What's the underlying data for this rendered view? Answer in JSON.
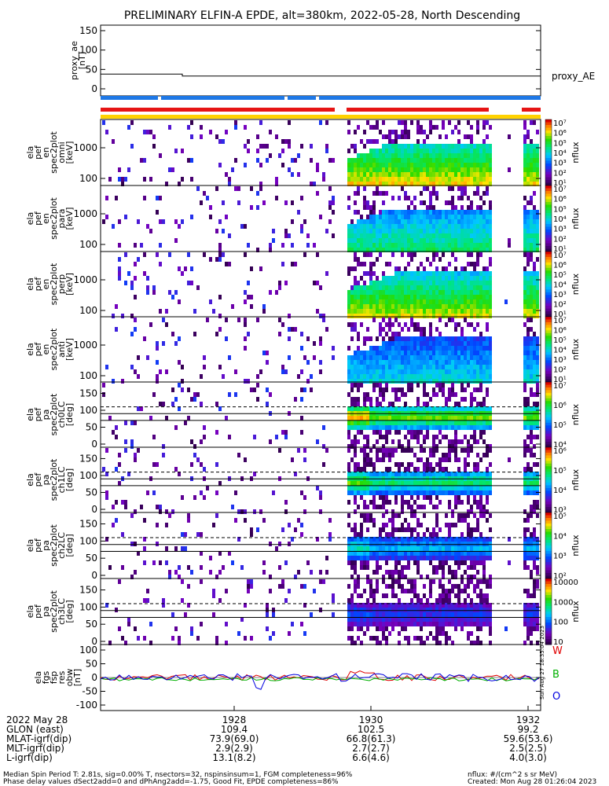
{
  "title": "PRELIMINARY ELFIN-A EPDE, alt=380km, 2022-05-28, North Descending",
  "proxy_panel": {
    "ylabel_lines": [
      "proxy_ae",
      "[nT]"
    ],
    "yticks": [
      "150",
      "100",
      "50",
      "0"
    ],
    "legend": "proxy_AE"
  },
  "spec_panels": [
    {
      "ylabel_lines": [
        "ela",
        "pef",
        "en",
        "spec2plot",
        "omni",
        "[keV]"
      ],
      "yticks": [
        "1000",
        "100"
      ],
      "cbar_ticks": [
        "10⁷",
        "10⁶",
        "10⁵",
        "10⁴",
        "10³",
        "10²",
        "10¹"
      ],
      "cbar_label": "nflux"
    },
    {
      "ylabel_lines": [
        "ela",
        "pef",
        "en",
        "spec2plot",
        "para",
        "[keV]"
      ],
      "yticks": [
        "1000",
        "100"
      ],
      "cbar_ticks": [
        "10⁷",
        "10⁶",
        "10⁵",
        "10⁴",
        "10³",
        "10²",
        "10¹"
      ],
      "cbar_label": "nflux"
    },
    {
      "ylabel_lines": [
        "ela",
        "pef",
        "en",
        "spec2plot",
        "perp",
        "[keV]"
      ],
      "yticks": [
        "1000",
        "100"
      ],
      "cbar_ticks": [
        "10⁷",
        "10⁶",
        "10⁵",
        "10⁴",
        "10³",
        "10²",
        "10¹"
      ],
      "cbar_label": "nflux"
    },
    {
      "ylabel_lines": [
        "ela",
        "pef",
        "en",
        "spec2plot",
        "anti",
        "[keV]"
      ],
      "yticks": [
        "1000",
        "100"
      ],
      "cbar_ticks": [
        "10⁷",
        "10⁶",
        "10⁵",
        "10⁴",
        "10³",
        "10²",
        "10¹"
      ],
      "cbar_label": "nflux"
    },
    {
      "ylabel_lines": [
        "ela",
        "pef",
        "pa",
        "spec2plot",
        "ch0LC",
        "[deg]"
      ],
      "yticks": [
        "150",
        "100",
        "50",
        "0"
      ],
      "cbar_ticks": [
        "10⁷",
        "10⁶",
        "10⁵",
        "10⁴"
      ],
      "cbar_label": "nflux"
    },
    {
      "ylabel_lines": [
        "ela",
        "pef",
        "pa",
        "spec2plot",
        "ch1LC",
        "[deg]"
      ],
      "yticks": [
        "150",
        "100",
        "50",
        "0"
      ],
      "cbar_ticks": [
        "10⁶",
        "10⁵",
        "10⁴",
        "10³"
      ],
      "cbar_label": "nflux"
    },
    {
      "ylabel_lines": [
        "ela",
        "pef",
        "pa",
        "spec2plot",
        "ch2LC",
        "[deg]"
      ],
      "yticks": [
        "150",
        "100",
        "50",
        "0"
      ],
      "cbar_ticks": [
        "10⁵",
        "10⁴",
        "10³",
        "10²"
      ],
      "cbar_label": "nflux"
    },
    {
      "ylabel_lines": [
        "ela",
        "pef",
        "pa",
        "spec2plot",
        "ch3LC",
        "[deg]"
      ],
      "yticks": [
        "150",
        "100",
        "50",
        "0"
      ],
      "cbar_ticks": [
        "10000",
        "1000",
        "100",
        "10"
      ],
      "cbar_label": "nflux"
    }
  ],
  "field_panel": {
    "ylabel_lines": [
      "ela",
      "fgs",
      "fsp",
      "res",
      "obw",
      "[nT]"
    ],
    "yticks": [
      "100",
      "50",
      "0",
      "-50",
      "-100"
    ],
    "legend": [
      {
        "label": "W",
        "color": "#e00000"
      },
      {
        "label": "B",
        "color": "#00b000"
      },
      {
        "label": "O",
        "color": "#0000e0"
      }
    ],
    "side_text": "Sun Aug 27 18:35:04 2023"
  },
  "xaxis": {
    "ticks": [
      "1928",
      "1930",
      "1932"
    ],
    "rows": [
      {
        "label": "2022 May 28",
        "values": [
          "",
          "",
          ""
        ]
      },
      {
        "label": "GLON (east)",
        "values": [
          "109.4",
          "102.5",
          "99.2"
        ]
      },
      {
        "label": "MLAT-igrf(dip)",
        "values": [
          "73.9(69.0)",
          "66.8(61.3)",
          "59.6(53.6)"
        ]
      },
      {
        "label": "MLT-igrf(dip)",
        "values": [
          "2.9(2.9)",
          "2.7(2.7)",
          "2.5(2.5)"
        ]
      },
      {
        "label": "L-igrf(dip)",
        "values": [
          "13.1(8.2)",
          "6.6(4.6)",
          "4.0(3.0)"
        ]
      }
    ]
  },
  "footer": {
    "left1": "Median Spin Period T: 2.81s, sig=0.00% T, nsectors=32, nspinsinsum=1, FGM completeness=96%",
    "left2": "Phase delay values dSect2add=0 and dPhAng2add=-1.75, Good Fit, EPDE completeness=86%",
    "right1": "nflux: #/(cm^2 s sr MeV)",
    "right2": "Created: Mon Aug 28 01:26:04 2023"
  },
  "colors": {
    "science_zone_blue": "#1e78e6",
    "science_zone_red": "#e61414",
    "science_zone_yellow": "#ffd200"
  }
}
